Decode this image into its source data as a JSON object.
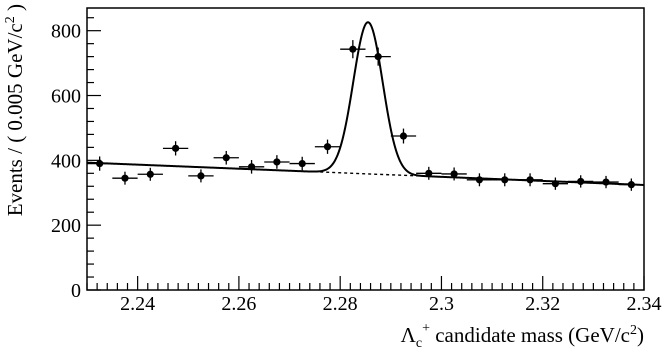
{
  "chart_data": {
    "type": "scatter",
    "title": "",
    "xlabel": "Λc+ candidate mass (GeV/c2)",
    "xlabel_parts": {
      "symbol": "Λ",
      "sub": "c",
      "sup": "+",
      "rest": " candidate mass (GeV/c",
      "unit_sup": "2",
      "close": ")"
    },
    "ylabel": "Events / ( 0.005 GeV/c2 )",
    "ylabel_parts": {
      "main": "Events / ( 0.005 GeV/c",
      "unit_sup": "2",
      "close": " )"
    },
    "xlim": [
      2.23,
      2.34
    ],
    "ylim": [
      0,
      870
    ],
    "x_ticks": [
      2.24,
      2.26,
      2.28,
      2.3,
      2.32,
      2.34
    ],
    "x_tick_labels": [
      "2.24",
      "2.26",
      "2.28",
      "2.3",
      "2.32",
      "2.34"
    ],
    "y_ticks": [
      0,
      200,
      400,
      600,
      800
    ],
    "y_tick_labels": [
      "0",
      "200",
      "400",
      "600",
      "800"
    ],
    "x_minor_step": 0.002,
    "y_minor_step": 40,
    "bin_half_width": 0.0025,
    "points": [
      {
        "x": 2.2325,
        "y": 390,
        "err": 22
      },
      {
        "x": 2.2375,
        "y": 345,
        "err": 20
      },
      {
        "x": 2.2425,
        "y": 357,
        "err": 20
      },
      {
        "x": 2.2475,
        "y": 437,
        "err": 22
      },
      {
        "x": 2.2525,
        "y": 352,
        "err": 20
      },
      {
        "x": 2.2575,
        "y": 408,
        "err": 21
      },
      {
        "x": 2.2625,
        "y": 380,
        "err": 21
      },
      {
        "x": 2.2675,
        "y": 395,
        "err": 21
      },
      {
        "x": 2.2725,
        "y": 390,
        "err": 21
      },
      {
        "x": 2.2775,
        "y": 442,
        "err": 22
      },
      {
        "x": 2.2825,
        "y": 743,
        "err": 28
      },
      {
        "x": 2.2875,
        "y": 720,
        "err": 28
      },
      {
        "x": 2.2925,
        "y": 475,
        "err": 23
      },
      {
        "x": 2.2975,
        "y": 360,
        "err": 20
      },
      {
        "x": 2.3025,
        "y": 358,
        "err": 20
      },
      {
        "x": 2.3075,
        "y": 340,
        "err": 20
      },
      {
        "x": 2.3125,
        "y": 340,
        "err": 20
      },
      {
        "x": 2.3175,
        "y": 340,
        "err": 20
      },
      {
        "x": 2.3225,
        "y": 328,
        "err": 19
      },
      {
        "x": 2.3275,
        "y": 335,
        "err": 19
      },
      {
        "x": 2.3325,
        "y": 333,
        "err": 19
      },
      {
        "x": 2.3375,
        "y": 325,
        "err": 19
      }
    ],
    "fit": {
      "signal_mean": 2.2855,
      "signal_sigma": 0.0029,
      "signal_peak": 468,
      "background_start": [
        2.23,
        393
      ],
      "background_end": [
        2.34,
        324
      ],
      "solid_ranges": [
        [
          2.23,
          2.2725
        ],
        [
          2.298,
          2.34
        ]
      ],
      "dashed_range": [
        2.2725,
        2.298
      ]
    },
    "grid": false,
    "legend": "none"
  }
}
